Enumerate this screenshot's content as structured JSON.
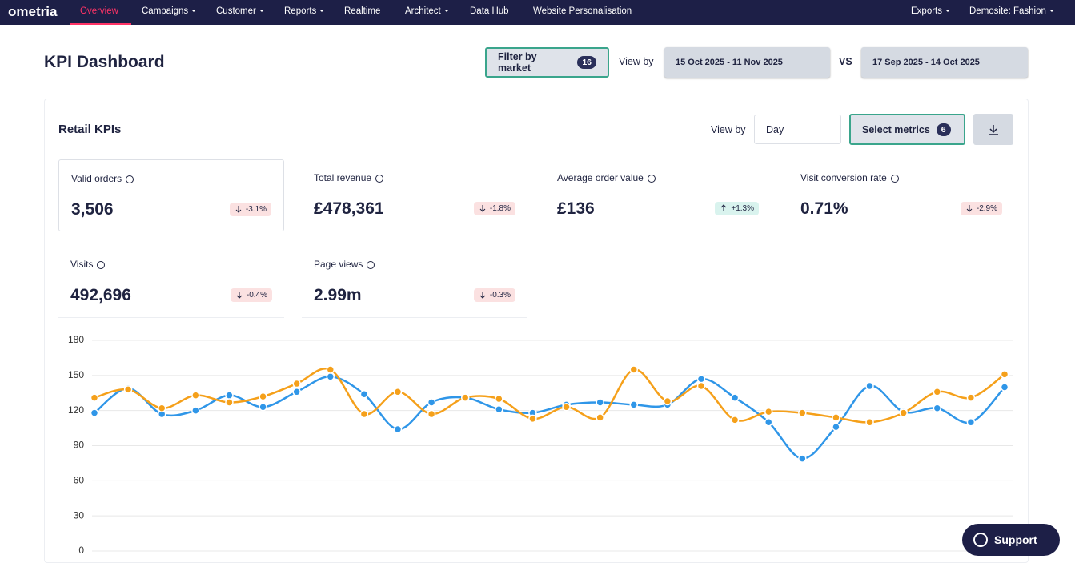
{
  "nav": {
    "logo": "ometria",
    "items": [
      "Overview",
      "Campaigns",
      "Customer",
      "Reports",
      "Realtime",
      "Architect",
      "Data Hub",
      "Website Personalisation"
    ],
    "right": [
      "Exports",
      "Demosite: Fashion"
    ]
  },
  "header": {
    "title": "KPI Dashboard",
    "filter_label": "Filter by market",
    "filter_count": "16",
    "view_by": "View by",
    "date_range": "15 Oct 2025 - 11 Nov 2025",
    "vs": "VS",
    "compare_range": "17 Sep 2025 - 14 Oct 2025"
  },
  "card": {
    "title": "Retail KPIs",
    "view_by": "View by",
    "period": "Day",
    "select_label": "Select metrics",
    "select_count": "6"
  },
  "kpis": [
    {
      "label": "Valid orders",
      "value": "3,506",
      "change": "-3.1%",
      "direction": "down"
    },
    {
      "label": "Total revenue",
      "value": "£478,361",
      "change": "-1.8%",
      "direction": "down"
    },
    {
      "label": "Average order value",
      "value": "£136",
      "change": "+1.3%",
      "direction": "up"
    },
    {
      "label": "Visit conversion rate",
      "value": "0.71%",
      "change": "-2.9%",
      "direction": "down"
    },
    {
      "label": "Visits",
      "value": "492,696",
      "change": "-0.4%",
      "direction": "down"
    },
    {
      "label": "Page views",
      "value": "2.99m",
      "change": "-0.3%",
      "direction": "down"
    }
  ],
  "support": "Support",
  "chart_data": {
    "type": "line",
    "series": [
      {
        "color": "#2f96e8",
        "values": [
          118,
          139,
          117,
          120,
          133,
          123,
          136,
          149,
          134,
          104,
          127,
          131,
          121,
          118,
          125,
          127,
          125,
          125,
          147,
          131,
          110,
          79,
          106,
          141,
          119,
          122,
          110,
          140
        ]
      },
      {
        "color": "#f5a01a",
        "values": [
          131,
          138,
          122,
          133,
          127,
          132,
          143,
          155,
          117,
          136,
          117,
          131,
          130,
          113,
          123,
          114,
          155,
          128,
          141,
          112,
          119,
          118,
          114,
          110,
          118,
          136,
          131,
          151
        ]
      }
    ],
    "ylim": [
      0,
      180
    ],
    "yticks": [
      0,
      30,
      60,
      90,
      120,
      150,
      180
    ],
    "grid": true
  }
}
